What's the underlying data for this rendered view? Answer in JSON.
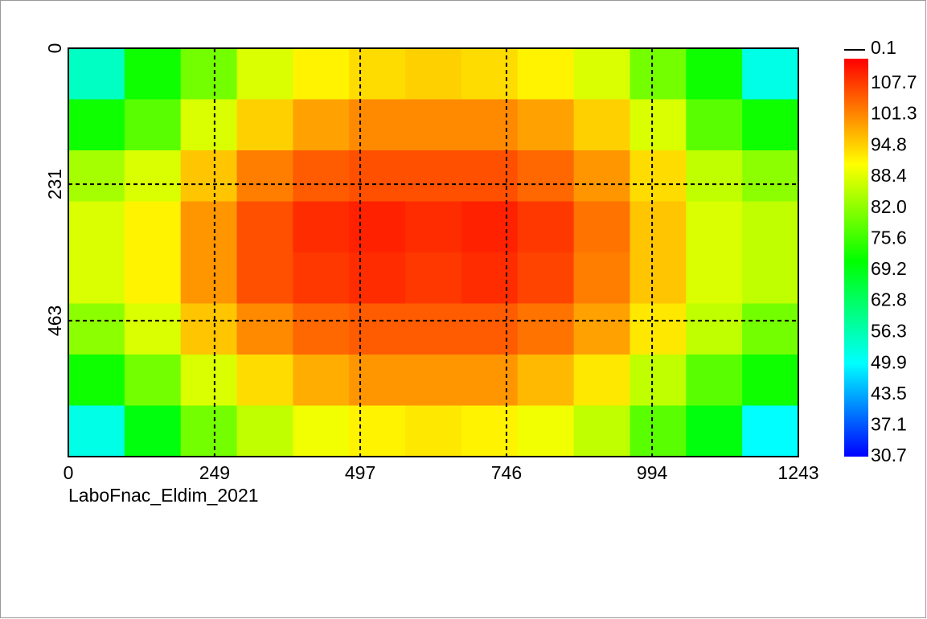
{
  "chart_data": {
    "type": "heatmap",
    "xlabel": "LaboFnac_Eldim_2021",
    "xlim": [
      0,
      1243
    ],
    "xticks": [
      0,
      249,
      497,
      746,
      994,
      1243
    ],
    "ylim": [
      0,
      694
    ],
    "yticks": [
      0,
      231,
      463
    ],
    "y_inverted": true,
    "grid": true,
    "z": [
      [
        55,
        72,
        80,
        88,
        92,
        94,
        95,
        94,
        92,
        88,
        80,
        72,
        52
      ],
      [
        72,
        78,
        88,
        95,
        99,
        101,
        101,
        101,
        99,
        95,
        88,
        78,
        72
      ],
      [
        84,
        88,
        96,
        102,
        105,
        106,
        106,
        106,
        104,
        100,
        94,
        86,
        82
      ],
      [
        88,
        92,
        100,
        106,
        109,
        110,
        109,
        110,
        108,
        103,
        96,
        88,
        86
      ],
      [
        88,
        92,
        100,
        106,
        108,
        109,
        108,
        109,
        107,
        102,
        96,
        88,
        86
      ],
      [
        82,
        88,
        96,
        101,
        104,
        105,
        105,
        105,
        103,
        99,
        93,
        86,
        80
      ],
      [
        72,
        80,
        88,
        94,
        98,
        100,
        100,
        100,
        97,
        93,
        86,
        78,
        72
      ],
      [
        52,
        70,
        80,
        86,
        90,
        92,
        93,
        92,
        90,
        86,
        78,
        70,
        50
      ]
    ],
    "clim": [
      30.7,
      112.8
    ],
    "colorscale": [
      [
        30.7,
        "#0000ff"
      ],
      [
        50,
        "#00ffff"
      ],
      [
        71,
        "#00ff00"
      ],
      [
        91,
        "#ffff00"
      ],
      [
        112.8,
        "#ff0000"
      ]
    ],
    "cticks": [
      107.7,
      101.3,
      94.8,
      88.4,
      {
        "value": 82,
        "label": "82.0"
      },
      75.6,
      69.2,
      62.8,
      56.3,
      49.9,
      43.5,
      37.1,
      30.7
    ],
    "contour_level": 0.1
  }
}
